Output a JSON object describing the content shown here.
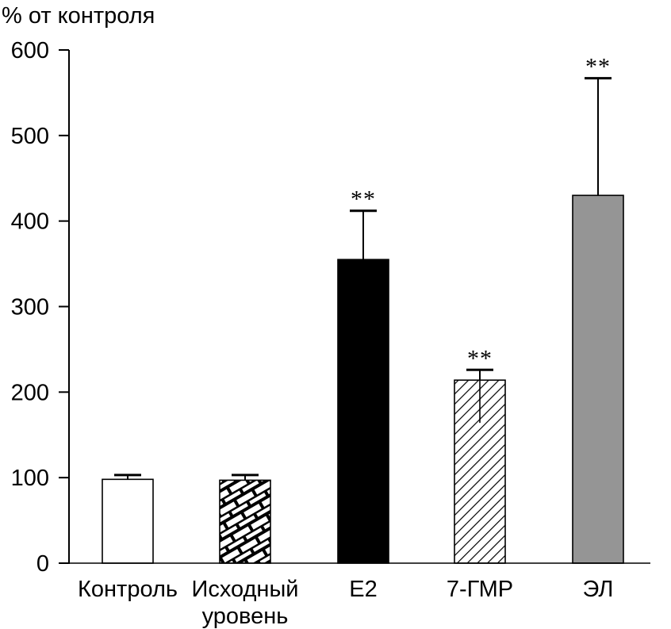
{
  "chart_data": {
    "type": "bar",
    "ylabel": "% от контроля",
    "ylim": [
      0,
      600
    ],
    "yticks": [
      0,
      100,
      200,
      300,
      400,
      500,
      600
    ],
    "ytick_labels": [
      "0",
      "100",
      "200",
      "300",
      "400",
      "500",
      "600"
    ],
    "grid": false,
    "bars": [
      {
        "label": [
          "Контроль"
        ],
        "value": 98,
        "error": 5,
        "significance": "",
        "fill": "white"
      },
      {
        "label": [
          "Исходный",
          "уровень"
        ],
        "value": 97,
        "error": 6,
        "significance": "",
        "fill": "brick-pattern"
      },
      {
        "label": [
          "E2"
        ],
        "value": 355,
        "error": 57,
        "significance": "**",
        "fill": "black"
      },
      {
        "label": [
          "7-ГМР"
        ],
        "value": 214,
        "error": 12,
        "lower_error": 50,
        "significance": "**",
        "fill": "diagonal-hatch"
      },
      {
        "label": [
          "ЭЛ"
        ],
        "value": 430,
        "error": 137,
        "significance": "**",
        "fill": "gray"
      }
    ],
    "colors": {
      "black": "#000000",
      "gray": "#959595",
      "white": "#ffffff"
    }
  }
}
